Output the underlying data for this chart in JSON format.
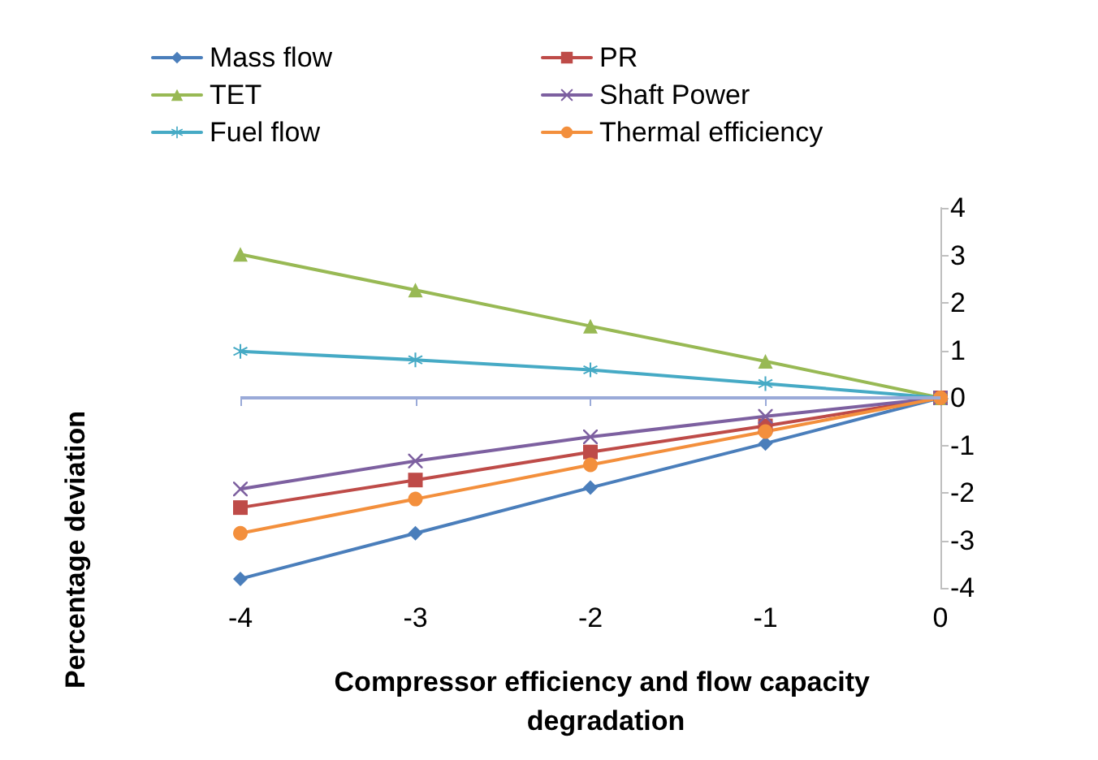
{
  "chart_data": {
    "type": "line",
    "xlabel": "Compressor efficiency and flow capacity degradation",
    "ylabel": "Percentage deviation",
    "x": [
      -4,
      -3,
      -2,
      -1,
      0
    ],
    "xlim": [
      -4,
      0
    ],
    "xticks": [
      -4,
      -3,
      -2,
      -1,
      0
    ],
    "ylim": [
      -4,
      4
    ],
    "yticks": [
      -4,
      -3,
      -2,
      -1,
      0,
      1,
      2,
      3,
      4
    ],
    "grid": false,
    "legend": "top",
    "line_style": "solid",
    "ref_lines": [
      {
        "axis": "y",
        "value": 0,
        "color": "#9aaad8"
      }
    ],
    "series": [
      {
        "name": "Mass flow",
        "color": "#4a7ebb",
        "marker": "diamond",
        "values": [
          -3.81,
          -2.85,
          -1.89,
          -0.96,
          0
        ]
      },
      {
        "name": "PR",
        "color": "#be4b48",
        "marker": "square",
        "values": [
          -2.31,
          -1.73,
          -1.14,
          -0.59,
          0
        ]
      },
      {
        "name": "TET",
        "color": "#98b954",
        "marker": "triangle",
        "values": [
          3.02,
          2.27,
          1.51,
          0.77,
          0
        ]
      },
      {
        "name": "Shaft Power",
        "color": "#7d60a0",
        "marker": "cross",
        "values": [
          -1.92,
          -1.33,
          -0.82,
          -0.39,
          0
        ]
      },
      {
        "name": "Fuel flow",
        "color": "#46aac5",
        "marker": "star",
        "values": [
          0.98,
          0.8,
          0.59,
          0.3,
          0
        ]
      },
      {
        "name": "Thermal efficiency",
        "color": "#f38f3c",
        "marker": "circle",
        "values": [
          -2.85,
          -2.13,
          -1.41,
          -0.71,
          0
        ]
      }
    ]
  }
}
